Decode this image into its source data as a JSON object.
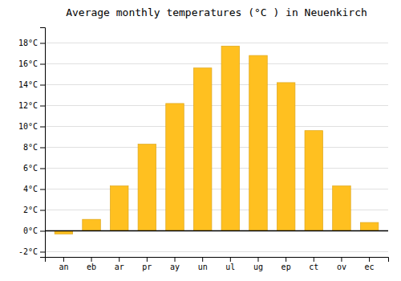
{
  "chart_data": {
    "type": "bar",
    "title": "Average monthly temperatures (°C ) in Neuenkirch",
    "categories": [
      "an",
      "eb",
      "ar",
      "pr",
      "ay",
      "un",
      "ul",
      "ug",
      "ep",
      "ct",
      "ov",
      "ec"
    ],
    "values": [
      -0.3,
      1.1,
      4.3,
      8.3,
      12.2,
      15.6,
      17.7,
      16.8,
      14.2,
      9.6,
      4.3,
      0.8
    ],
    "color": "#FFC020",
    "ylim": [
      -2.5,
      19.5
    ],
    "yticks": [
      {
        "value": -2,
        "label": "-2°C"
      },
      {
        "value": 0,
        "label": "0°C"
      },
      {
        "value": 2,
        "label": "2°C"
      },
      {
        "value": 4,
        "label": "4°C"
      },
      {
        "value": 6,
        "label": "6°C"
      },
      {
        "value": 8,
        "label": "8°C"
      },
      {
        "value": 10,
        "label": "10°C"
      },
      {
        "value": 12,
        "label": "12°C"
      },
      {
        "value": 14,
        "label": "14°C"
      },
      {
        "value": 16,
        "label": "16°C"
      },
      {
        "value": 18,
        "label": "18°C"
      }
    ],
    "grid": true
  }
}
